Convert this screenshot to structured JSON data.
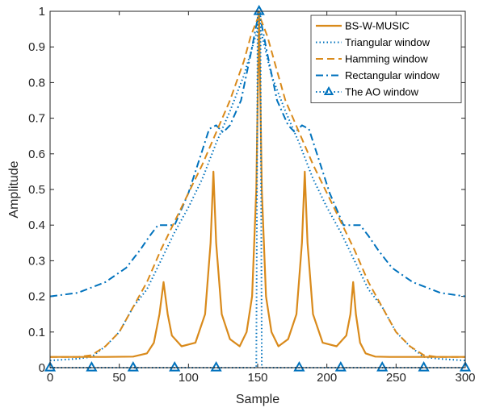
{
  "chart_data": {
    "type": "line",
    "title": "",
    "xlabel": "Sample",
    "ylabel": "Amplitude",
    "xlim": [
      0,
      300
    ],
    "ylim": [
      0,
      1
    ],
    "x_ticks": [
      0,
      50,
      100,
      150,
      200,
      250,
      300
    ],
    "y_ticks": [
      0,
      0.1,
      0.2,
      0.3,
      0.4,
      0.5,
      0.6,
      0.7,
      0.8,
      0.9,
      1
    ],
    "x_tick_labels": [
      "0",
      "50",
      "100",
      "150",
      "200",
      "250",
      "300"
    ],
    "y_tick_labels": [
      "0",
      "0.1",
      "0.2",
      "0.3",
      "0.4",
      "0.5",
      "0.6",
      "0.7",
      "0.8",
      "0.9",
      "1"
    ],
    "grid": false,
    "legend_position": "top-right",
    "series": [
      {
        "name": "BS-W-MUSIC",
        "color": "#D98A1B",
        "style": "solid",
        "x": [
          0,
          40,
          60,
          70,
          75,
          79,
          82,
          85,
          88,
          95,
          105,
          112,
          116,
          118,
          120,
          124,
          130,
          137,
          142,
          146,
          149,
          151,
          153,
          156,
          160,
          165,
          172,
          178,
          182,
          184,
          186,
          190,
          197,
          207,
          214,
          217,
          219,
          221,
          224,
          228,
          235,
          245,
          260,
          300
        ],
        "values": [
          0.03,
          0.03,
          0.031,
          0.04,
          0.07,
          0.15,
          0.24,
          0.15,
          0.09,
          0.06,
          0.07,
          0.15,
          0.35,
          0.55,
          0.35,
          0.15,
          0.08,
          0.06,
          0.1,
          0.2,
          0.5,
          1.0,
          0.5,
          0.2,
          0.1,
          0.06,
          0.08,
          0.15,
          0.35,
          0.55,
          0.35,
          0.15,
          0.07,
          0.06,
          0.09,
          0.15,
          0.24,
          0.15,
          0.07,
          0.04,
          0.031,
          0.03,
          0.03,
          0.03
        ]
      },
      {
        "name": "Triangular window",
        "color": "#0072BD",
        "style": "dotted",
        "x": [
          0,
          20,
          30,
          40,
          50,
          60,
          70,
          80,
          90,
          100,
          110,
          120,
          130,
          140,
          150,
          151,
          152,
          160,
          170,
          180,
          190,
          200,
          210,
          220,
          230,
          240,
          250,
          260,
          270,
          280,
          300
        ],
        "values": [
          0.02,
          0.025,
          0.03,
          0.06,
          0.1,
          0.17,
          0.22,
          0.3,
          0.38,
          0.45,
          0.53,
          0.63,
          0.72,
          0.82,
          0.95,
          1.0,
          0.95,
          0.82,
          0.72,
          0.63,
          0.53,
          0.45,
          0.38,
          0.3,
          0.22,
          0.17,
          0.1,
          0.06,
          0.03,
          0.025,
          0.02
        ]
      },
      {
        "name": "Hamming window",
        "color": "#D98A1B",
        "style": "dashed",
        "x": [
          0,
          20,
          30,
          40,
          50,
          60,
          70,
          80,
          90,
          100,
          110,
          120,
          130,
          140,
          145,
          151,
          157,
          162,
          170,
          180,
          190,
          200,
          210,
          220,
          230,
          240,
          250,
          260,
          270,
          280,
          300
        ],
        "values": [
          0.03,
          0.03,
          0.035,
          0.06,
          0.1,
          0.17,
          0.24,
          0.33,
          0.41,
          0.49,
          0.57,
          0.66,
          0.75,
          0.86,
          0.93,
          0.99,
          0.93,
          0.86,
          0.75,
          0.66,
          0.57,
          0.49,
          0.41,
          0.33,
          0.24,
          0.17,
          0.1,
          0.06,
          0.035,
          0.03,
          0.03
        ]
      },
      {
        "name": "Rectangular window",
        "color": "#0072BD",
        "style": "dashdot",
        "x": [
          0,
          20,
          40,
          55,
          65,
          72,
          78,
          85,
          90,
          100,
          110,
          115,
          120,
          125,
          130,
          138,
          145,
          151,
          157,
          164,
          172,
          177,
          182,
          187,
          192,
          202,
          212,
          217,
          224,
          230,
          237,
          247,
          262,
          282,
          300
        ],
        "values": [
          0.2,
          0.21,
          0.24,
          0.28,
          0.33,
          0.37,
          0.4,
          0.4,
          0.4,
          0.49,
          0.61,
          0.67,
          0.68,
          0.66,
          0.68,
          0.75,
          0.88,
          1.0,
          0.88,
          0.75,
          0.68,
          0.66,
          0.68,
          0.67,
          0.61,
          0.49,
          0.4,
          0.4,
          0.4,
          0.37,
          0.33,
          0.28,
          0.24,
          0.21,
          0.2
        ]
      },
      {
        "name": "The AO window",
        "color": "#0072BD",
        "style": "dotted-triangle",
        "x": [
          0,
          30,
          60,
          90,
          120,
          149,
          150,
          151,
          152,
          153,
          180,
          210,
          240,
          270,
          300
        ],
        "values": [
          0,
          0,
          0,
          0,
          0,
          0,
          1.0,
          1.0,
          1.0,
          0,
          0,
          0,
          0,
          0,
          0
        ],
        "markers_x": [
          0,
          30,
          60,
          90,
          120,
          151,
          180,
          210,
          240,
          270,
          300
        ],
        "markers_y": [
          0,
          0,
          0,
          0,
          0,
          1,
          0,
          0,
          0,
          0,
          0
        ]
      }
    ]
  }
}
